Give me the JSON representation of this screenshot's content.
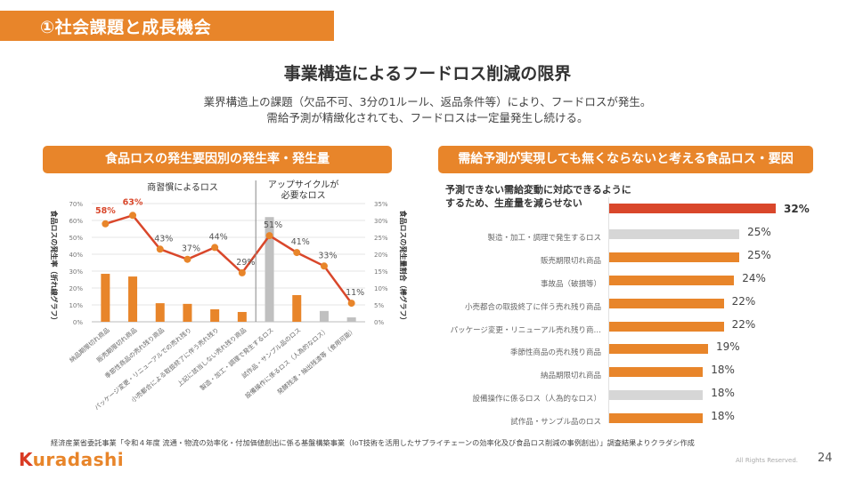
{
  "section_title": "①社会課題と成長機会",
  "main_title": "事業構造によるフードロス削減の限界",
  "subtitle_lines": [
    "業界構造上の課題（欠品不可、3分の1ルール、返品条件等）により、フードロスが発生。",
    "需給予測が精緻化されても、フードロスは一定量発生し続ける。"
  ],
  "left_panel": {
    "header": "食品ロスの発生要因別の発生率・発生量"
  },
  "right_panel": {
    "header": "需給予測が実現しても無くならないと考える食品ロス・要因"
  },
  "chart_data": [
    {
      "type": "bar+line",
      "title": "食品ロスの発生要因別の発生率・発生量",
      "group_labels": [
        "商習慣によるロス",
        "アップサイクルが\n必要なロス"
      ],
      "categories": [
        "納品期限切れ商品",
        "販売期限切れ商品",
        "季節性商品の売れ残り商品",
        "パッケージ変更・リニューアルでの売れ残り",
        "小売都合による取扱終了に伴う売れ残り",
        "上記に該当しない売れ残り商品",
        "製造・加工・調理で発生するロス",
        "試作品・サンプル品のロス",
        "設備操作に係るロス（人為的なロス）",
        "発酵残渣・抽出残渣等（食用可能）"
      ],
      "ylabel_left": "食品ロスの発生率（折れ線グラフ）",
      "ylabel_right": "食品ロスの発生量割合（棒グラフ）",
      "ylim_left": [
        0,
        70
      ],
      "ylim_right": [
        0,
        35
      ],
      "yticks_left": [
        "0%",
        "10%",
        "20%",
        "30%",
        "40%",
        "50%",
        "60%",
        "70%"
      ],
      "yticks_right": [
        "0%",
        "5%",
        "10%",
        "15%",
        "20%",
        "25%",
        "30%",
        "35%"
      ],
      "grid": true,
      "series": [
        {
          "name": "発生率（折れ線）",
          "type": "line",
          "axis": "left",
          "color": "#d9472b",
          "values": [
            58,
            63,
            43,
            37,
            44,
            29,
            51,
            41,
            33,
            11
          ],
          "labels": [
            "58%",
            "63%",
            "43%",
            "37%",
            "44%",
            "29%",
            "51%",
            "41%",
            "33%",
            "11%"
          ],
          "highlight_labels": [
            0,
            1
          ]
        },
        {
          "name": "発生量割合（棒）",
          "type": "bar",
          "axis": "right",
          "values": [
            14.2,
            13.4,
            5.5,
            5.3,
            3.7,
            2.9,
            31.0,
            7.9,
            3.2,
            1.3
          ],
          "colors": [
            "#e8852a",
            "#e8852a",
            "#e8852a",
            "#e8852a",
            "#e8852a",
            "#e8852a",
            "#c0c0c0",
            "#e8852a",
            "#c0c0c0",
            "#c0c0c0"
          ]
        }
      ]
    },
    {
      "type": "bar",
      "orientation": "horizontal",
      "title": "需給予測が実現しても無くならないと考える食品ロス・要因",
      "top_item_label": "予測できない需給変動に対応できるように\nするため、生産量を減らせない",
      "categories": [
        "予測できない需給変動に対応できるようにするため、生産量を減らせない",
        "製造・加工・調理で発生するロス",
        "販売期限切れ商品",
        "事故品（破損等）",
        "小売都合の取扱終了に伴う売れ残り商品",
        "パッケージ変更・リニューアル売れ残り商…",
        "季節性商品の売れ残り商品",
        "納品期限切れ商品",
        "設備操作に係るロス（人為的なロス）",
        "試作品・サンプル品のロス"
      ],
      "values": [
        32,
        25,
        25,
        24,
        22,
        22,
        19,
        18,
        18,
        18
      ],
      "labels": [
        "32%",
        "25%",
        "25%",
        "24%",
        "22%",
        "22%",
        "19%",
        "18%",
        "18%",
        "18%"
      ],
      "colors": [
        "#d9472b",
        "#d6d6d6",
        "#e8852a",
        "#e8852a",
        "#e8852a",
        "#e8852a",
        "#e8852a",
        "#e8852a",
        "#d6d6d6",
        "#e8852a"
      ],
      "xlim": [
        0,
        32
      ]
    }
  ],
  "footnote": "経済産業省委託事業「令和４年度 流通・物流の効率化・付加価値創出に係る基盤構築事業（IoT技術を活用したサプライチェーンの効率化及び食品ロス削減の事例創出）」調査結果よりクラダシ作成",
  "footer": {
    "logo_first": "K",
    "logo_rest": "uradashi",
    "rights": "All Rights Reserved.",
    "page_number": "24"
  },
  "colors": {
    "brand_orange": "#e8852a",
    "accent_red": "#d9472b",
    "gray_bar": "#c0c0c0"
  }
}
